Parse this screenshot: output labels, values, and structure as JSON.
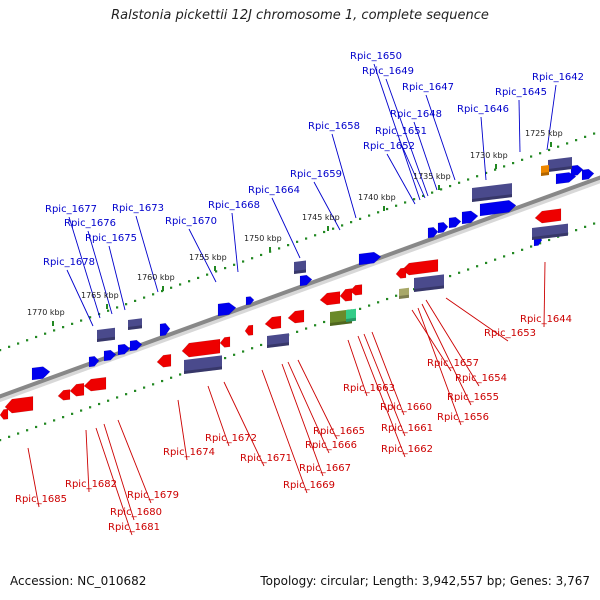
{
  "title": "Ralstonia pickettii 12J chromosome 1, complete sequence",
  "accession": "Accession: NC_010682",
  "topology": "Topology: circular; Length: 3,942,557 bp; Genes: 3,767",
  "colors": {
    "forward_gene": "#0000ee",
    "reverse_gene": "#ee0000",
    "feature_box": "#4a4a8c",
    "forward_label": "#0000cc",
    "reverse_label": "#cc0000",
    "backbone": "#888888",
    "kbp_ticks": "#228822",
    "orange_feature": "#ee8800",
    "green_feature": "#6a8a2a",
    "teal_feature": "#33cc88",
    "olive_feature": "#a8a868"
  },
  "kbp_labels": [
    "1725 kbp",
    "1730 kbp",
    "1735 kbp",
    "1740 kbp",
    "1745 kbp",
    "1750 kbp",
    "1755 kbp",
    "1760 kbp",
    "1765 kbp",
    "1770 kbp"
  ],
  "forward_genes": [
    "Rpic_1642",
    "Rpic_1645",
    "Rpic_1646",
    "Rpic_1647",
    "Rpic_1648",
    "Rpic_1649",
    "Rpic_1650",
    "Rpic_1651",
    "Rpic_1652",
    "Rpic_1658",
    "Rpic_1659",
    "Rpic_1664",
    "Rpic_1668",
    "Rpic_1670",
    "Rpic_1673",
    "Rpic_1675",
    "Rpic_1676",
    "Rpic_1677",
    "Rpic_1678"
  ],
  "reverse_genes": [
    "Rpic_1644",
    "Rpic_1653",
    "Rpic_1654",
    "Rpic_1655",
    "Rpic_1656",
    "Rpic_1657",
    "Rpic_1660",
    "Rpic_1661",
    "Rpic_1662",
    "Rpic_1663",
    "Rpic_1665",
    "Rpic_1666",
    "Rpic_1667",
    "Rpic_1669",
    "Rpic_1671",
    "Rpic_1672",
    "Rpic_1674",
    "Rpic_1679",
    "Rpic_1680",
    "Rpic_1681",
    "Rpic_1682",
    "Rpic_1685"
  ]
}
